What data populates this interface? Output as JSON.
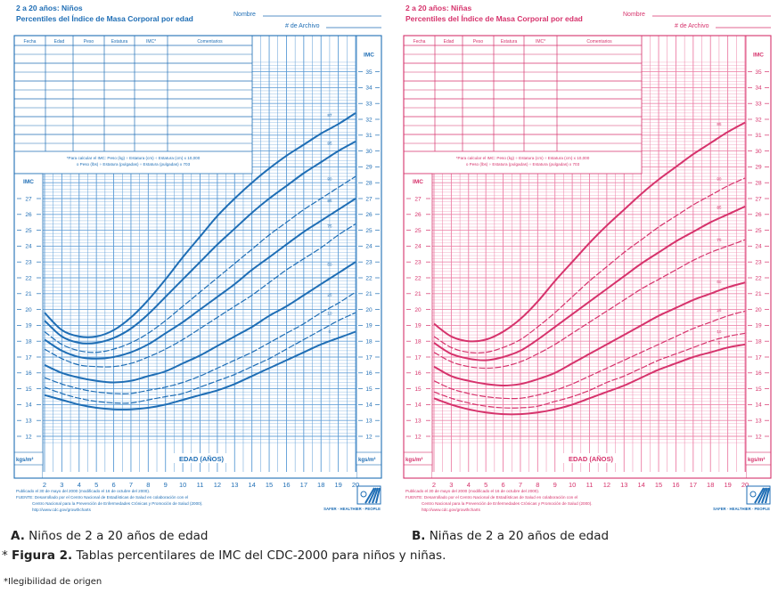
{
  "chart_data": [
    {
      "type": "line",
      "id": "boys",
      "title": "2 a 20 años: Niños",
      "subtitle": "Percentiles del Índice de Masa Corporal por edad",
      "name_label": "Nombre",
      "file_label": "# de Archivo",
      "table_headers": [
        "Fecha",
        "Edad",
        "Peso",
        "Estatura",
        "IMC*",
        "Comentarios"
      ],
      "formula_note": [
        "*Para calcular el IMC: Peso (kg) ÷ Estatura (cm) ÷ Estatura (cm) x 10,000",
        "o Peso (lbs) ÷ Estatura (pulgadas) ÷ Estatura (pulgadas) x 703"
      ],
      "xlabel": "EDAD (AÑOS)",
      "ylabel": "IMC",
      "yunit": "kgs/m²",
      "x": [
        2,
        3,
        4,
        5,
        6,
        7,
        8,
        9,
        10,
        11,
        12,
        13,
        14,
        15,
        16,
        17,
        18,
        19,
        20
      ],
      "xlim": [
        2,
        20
      ],
      "ylim_left": [
        12,
        27
      ],
      "ylim_right": [
        12,
        35
      ],
      "series": [
        {
          "name": "97",
          "style": "solid",
          "values": [
            19.8,
            18.7,
            18.3,
            18.3,
            18.7,
            19.5,
            20.6,
            21.9,
            23.3,
            24.6,
            25.9,
            27.0,
            28.0,
            28.9,
            29.7,
            30.4,
            31.1,
            31.7,
            32.4
          ]
        },
        {
          "name": "95",
          "style": "solid",
          "values": [
            19.3,
            18.3,
            17.9,
            17.9,
            18.2,
            18.8,
            19.7,
            20.8,
            21.9,
            23.0,
            24.1,
            25.1,
            26.1,
            27.0,
            27.8,
            28.6,
            29.3,
            30.0,
            30.6
          ]
        },
        {
          "name": "90",
          "style": "dashed",
          "values": [
            18.6,
            17.8,
            17.4,
            17.3,
            17.5,
            17.9,
            18.5,
            19.3,
            20.2,
            21.1,
            22.0,
            22.9,
            23.8,
            24.7,
            25.5,
            26.3,
            27.0,
            27.7,
            28.4
          ]
        },
        {
          "name": "85",
          "style": "solid",
          "values": [
            18.1,
            17.4,
            17.0,
            16.9,
            17.0,
            17.3,
            17.8,
            18.5,
            19.2,
            20.0,
            20.8,
            21.6,
            22.5,
            23.3,
            24.1,
            24.9,
            25.6,
            26.3,
            27.0
          ]
        },
        {
          "name": "75",
          "style": "dashed",
          "values": [
            17.5,
            16.9,
            16.5,
            16.4,
            16.4,
            16.6,
            17.0,
            17.5,
            18.1,
            18.8,
            19.5,
            20.2,
            20.9,
            21.7,
            22.5,
            23.2,
            23.9,
            24.7,
            25.4
          ]
        },
        {
          "name": "50",
          "style": "solid",
          "values": [
            16.5,
            16.0,
            15.7,
            15.5,
            15.4,
            15.5,
            15.8,
            16.1,
            16.6,
            17.1,
            17.7,
            18.3,
            18.9,
            19.6,
            20.2,
            20.9,
            21.6,
            22.3,
            23.0
          ]
        },
        {
          "name": "25",
          "style": "dashed",
          "values": [
            15.7,
            15.3,
            15.0,
            14.8,
            14.7,
            14.7,
            14.9,
            15.1,
            15.4,
            15.8,
            16.3,
            16.8,
            17.3,
            17.9,
            18.5,
            19.1,
            19.8,
            20.4,
            21.1
          ]
        },
        {
          "name": "10",
          "style": "dashed",
          "values": [
            15.1,
            14.7,
            14.4,
            14.2,
            14.1,
            14.1,
            14.3,
            14.5,
            14.7,
            15.1,
            15.5,
            15.9,
            16.4,
            16.9,
            17.5,
            18.1,
            18.7,
            19.3,
            19.8
          ]
        },
        {
          "name": "5",
          "style": "solid",
          "values": [
            14.6,
            14.3,
            14.0,
            13.8,
            13.7,
            13.7,
            13.8,
            14.0,
            14.3,
            14.6,
            14.9,
            15.3,
            15.8,
            16.3,
            16.8,
            17.3,
            17.8,
            18.2,
            18.6
          ]
        }
      ],
      "footer": [
        "Publicado el 30 de mayo del 2000 (modificado el 16 de octubre del 2000).",
        "FUENTE: Desarrollado por el Centro Nacional de Estadísticas de Salud en colaboración con el",
        "Centro Nacional para la Prevención de Enfermedades Crónicas y Promoción de Salud (2000).",
        "http://www.cdc.gov/growthcharts"
      ],
      "logo_text": "SAFER · HEALTHIER · PEOPLE",
      "color": "#1f6eb5",
      "grid_color": "#5b9bd5"
    },
    {
      "type": "line",
      "id": "girls",
      "title": "2 a 20 años: Niñas",
      "subtitle": "Percentiles del Índice de Masa Corporal por edad",
      "name_label": "Nombre",
      "file_label": "# de Archivo",
      "table_headers": [
        "Fecha",
        "Edad",
        "Peso",
        "Estatura",
        "IMC*",
        "Comentarios"
      ],
      "formula_note": [
        "*Para calcular el IMC: Peso (kg) ÷ Estatura (cm) ÷ Estatura (cm) x 10,000",
        "o Peso (lbs) ÷ Estatura (pulgadas) ÷ Estatura (pulgadas) x 703"
      ],
      "xlabel": "EDAD (AÑOS)",
      "ylabel": "IMC",
      "yunit": "kgs/m²",
      "x": [
        2,
        3,
        4,
        5,
        6,
        7,
        8,
        9,
        10,
        11,
        12,
        13,
        14,
        15,
        16,
        17,
        18,
        19,
        20
      ],
      "xlim": [
        2,
        20
      ],
      "ylim_left": [
        12,
        27
      ],
      "ylim_right": [
        12,
        35
      ],
      "series": [
        {
          "name": "95",
          "style": "solid",
          "values": [
            19.1,
            18.3,
            18.0,
            18.1,
            18.6,
            19.4,
            20.5,
            21.8,
            23.0,
            24.2,
            25.3,
            26.3,
            27.3,
            28.2,
            29.0,
            29.8,
            30.5,
            31.2,
            31.8
          ]
        },
        {
          "name": "90",
          "style": "dashed",
          "values": [
            18.3,
            17.6,
            17.3,
            17.3,
            17.6,
            18.1,
            18.9,
            19.8,
            20.8,
            21.8,
            22.7,
            23.6,
            24.4,
            25.2,
            25.9,
            26.6,
            27.2,
            27.8,
            28.3
          ]
        },
        {
          "name": "85",
          "style": "solid",
          "values": [
            17.9,
            17.2,
            16.9,
            16.8,
            17.0,
            17.4,
            18.1,
            18.9,
            19.7,
            20.5,
            21.3,
            22.1,
            22.9,
            23.6,
            24.3,
            24.9,
            25.5,
            26.0,
            26.5
          ]
        },
        {
          "name": "75",
          "style": "dashed",
          "values": [
            17.3,
            16.7,
            16.4,
            16.3,
            16.4,
            16.7,
            17.2,
            17.8,
            18.5,
            19.2,
            19.9,
            20.6,
            21.3,
            21.9,
            22.5,
            23.1,
            23.6,
            24.0,
            24.4
          ]
        },
        {
          "name": "50",
          "style": "solid",
          "values": [
            16.4,
            15.8,
            15.5,
            15.3,
            15.2,
            15.3,
            15.6,
            16.0,
            16.6,
            17.2,
            17.8,
            18.4,
            19.0,
            19.6,
            20.1,
            20.6,
            21.0,
            21.4,
            21.7
          ]
        },
        {
          "name": "25",
          "style": "dashed",
          "values": [
            15.5,
            15.0,
            14.7,
            14.5,
            14.4,
            14.4,
            14.6,
            14.9,
            15.3,
            15.8,
            16.3,
            16.8,
            17.3,
            17.8,
            18.3,
            18.8,
            19.2,
            19.6,
            19.9
          ]
        },
        {
          "name": "10",
          "style": "dashed",
          "values": [
            14.8,
            14.4,
            14.1,
            13.9,
            13.8,
            13.8,
            13.9,
            14.2,
            14.5,
            14.9,
            15.4,
            15.8,
            16.3,
            16.8,
            17.2,
            17.6,
            18.0,
            18.3,
            18.5
          ]
        },
        {
          "name": "5",
          "style": "solid",
          "values": [
            14.4,
            14.0,
            13.7,
            13.5,
            13.4,
            13.4,
            13.5,
            13.7,
            14.0,
            14.4,
            14.8,
            15.2,
            15.7,
            16.2,
            16.6,
            17.0,
            17.3,
            17.6,
            17.8
          ]
        }
      ],
      "footer": [
        "Publicado el 30 de mayo del 2000 (modificado el 16 de octubre del 2000).",
        "FUENTE: Desarrollado por el Centro Nacional de Estadísticas de Salud en colaboración con el",
        "Centro Nacional para la Prevención de Enfermedades Crónicas y Promoción de Salud (2000).",
        "http://www.cdc.gov/growthcharts"
      ],
      "logo_text": "SAFER · HEALTHIER · PEOPLE",
      "color": "#d6336c",
      "grid_color": "#ec7fa6"
    }
  ],
  "captions": {
    "a_letter": "A.",
    "a_text": " Niños de 2 a 20 años de edad",
    "b_letter": "B.",
    "b_text": " Niñas de 2 a 20 años de edad",
    "fig_prefix": "* ",
    "fig_label": "Figura 2.",
    "fig_text": " Tablas percentilares de IMC del CDC-2000 para niños y niñas.",
    "note": "*Ilegibilidad de origen"
  },
  "logo_color": "#1f6eb5"
}
